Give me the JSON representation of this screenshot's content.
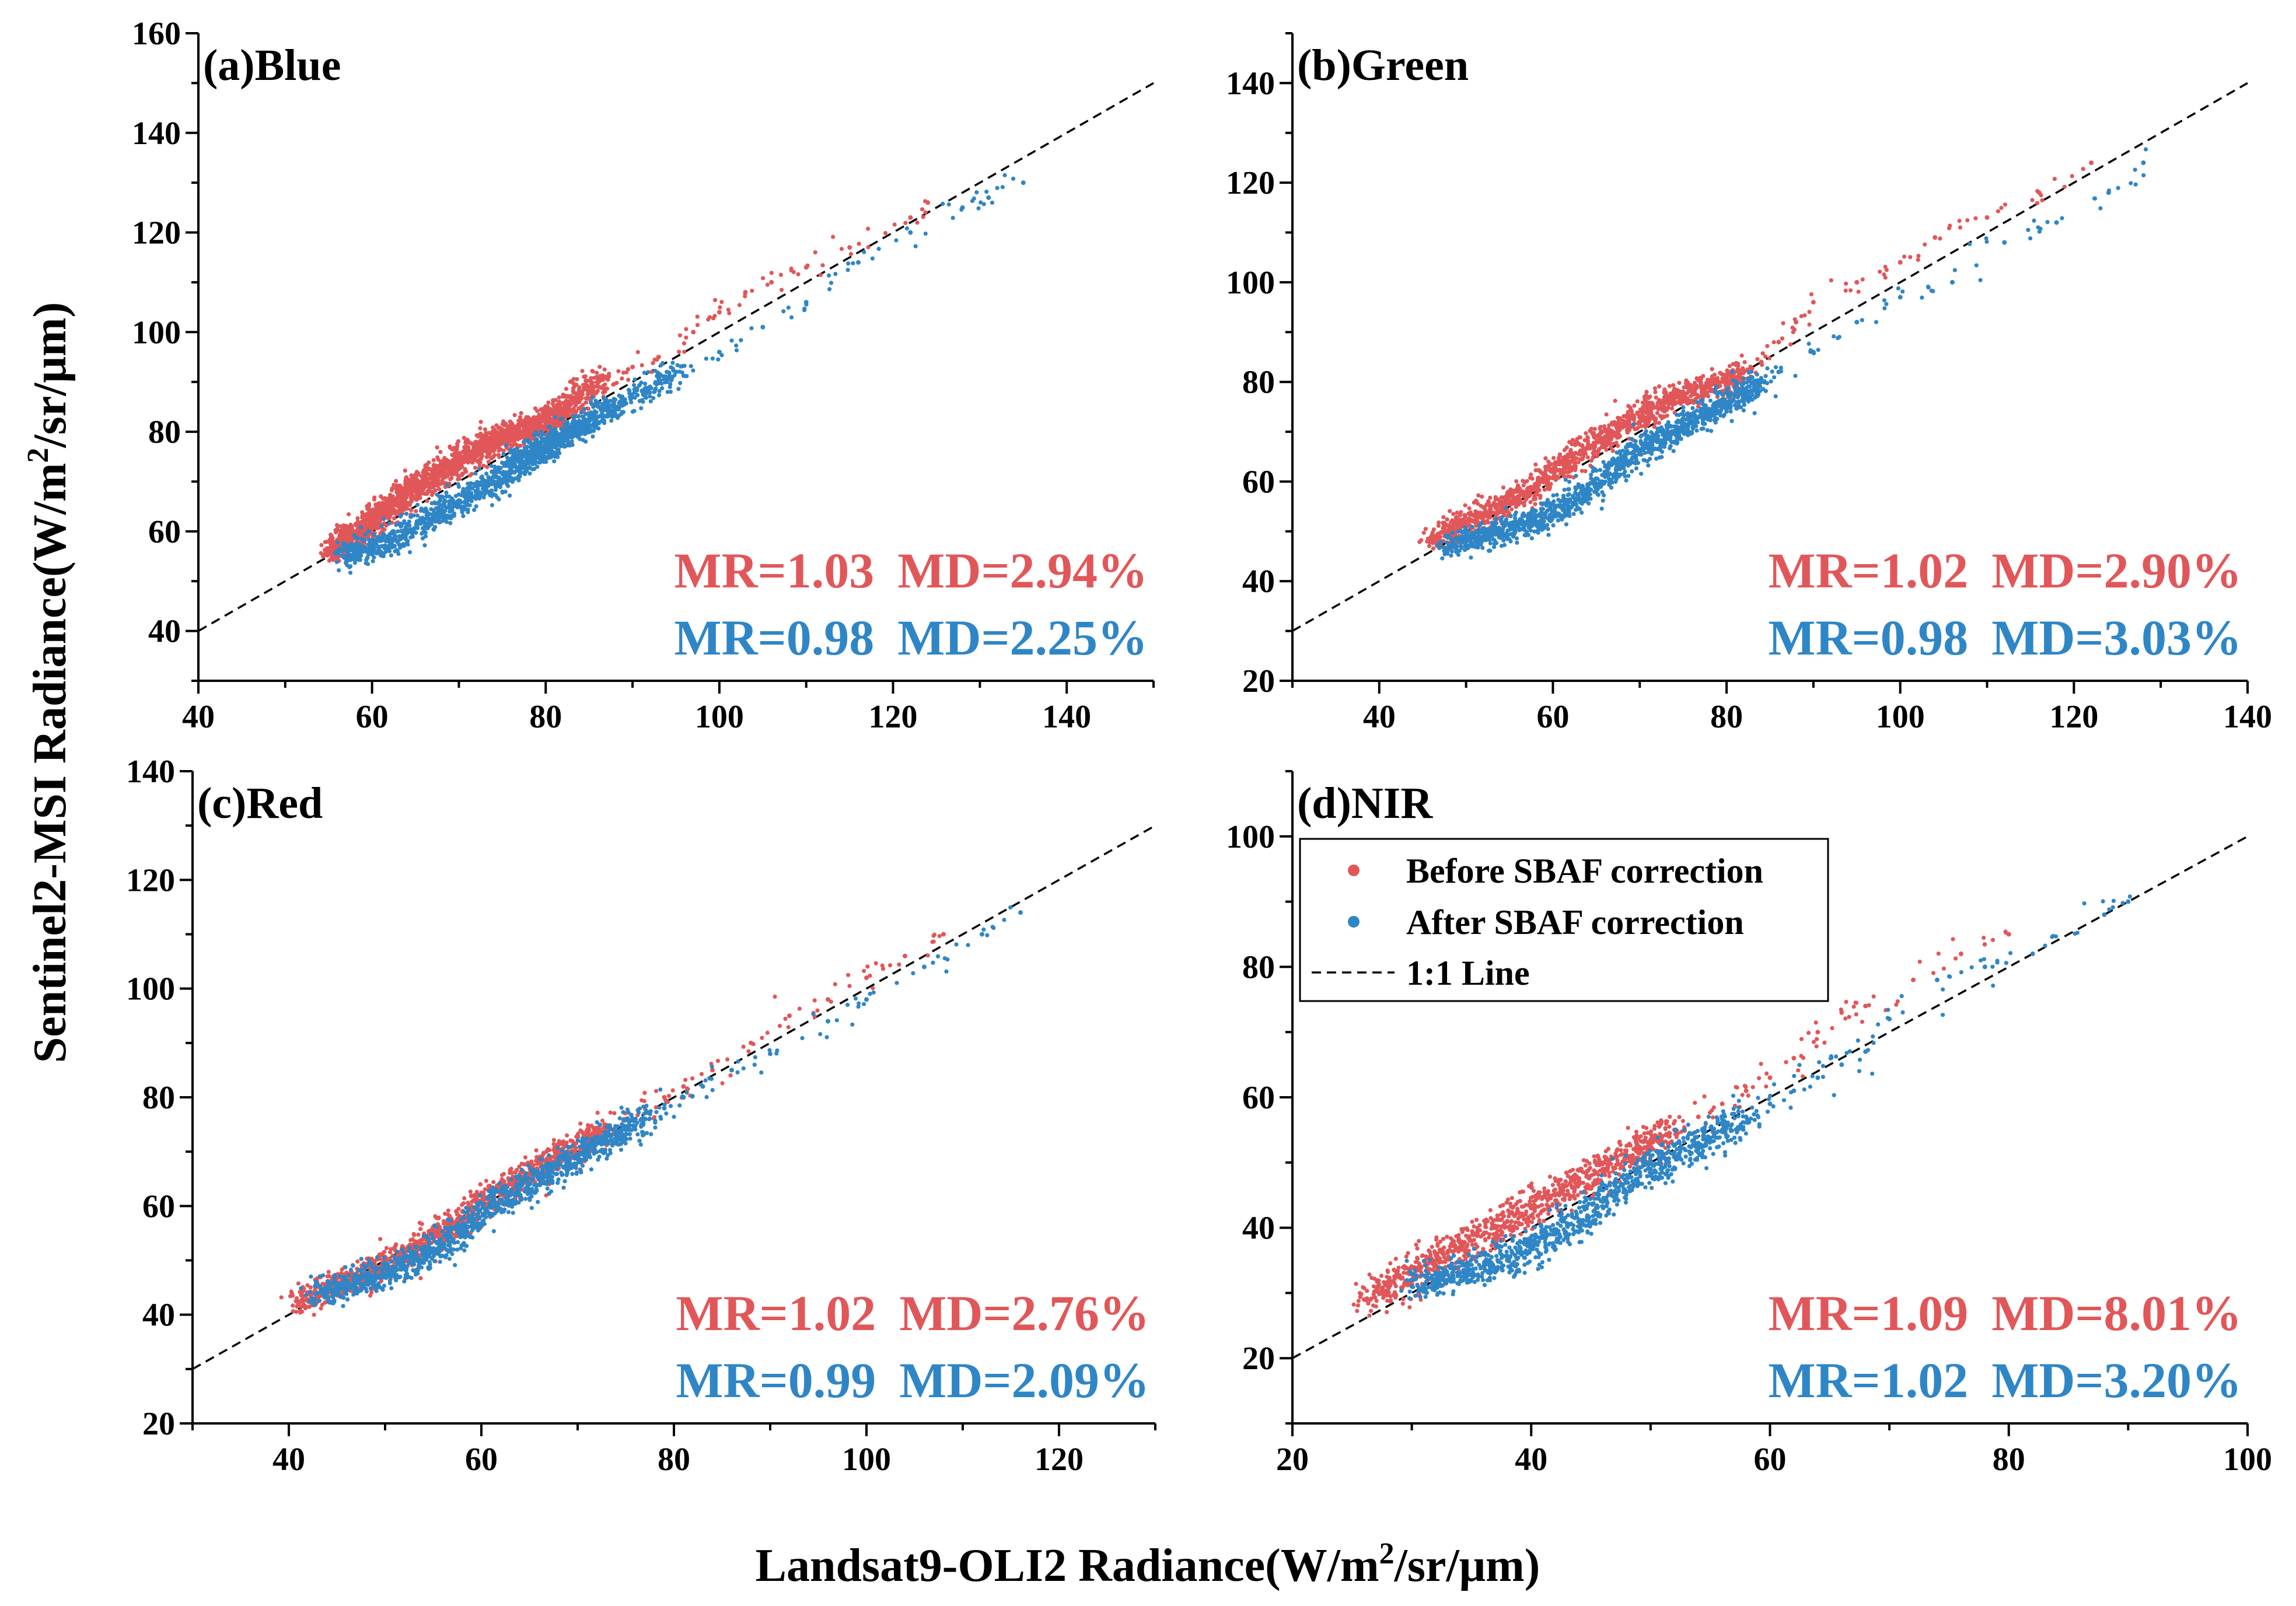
{
  "figure": {
    "xlabel_main": "Landsat9-OLI2 Radiance(W/m",
    "xlabel_sup": "2",
    "xlabel_tail": "/sr/μm)",
    "ylabel_main": "Sentinel2-MSI Radiance(W/m",
    "ylabel_sup": "2",
    "ylabel_tail": "/sr/μm)"
  },
  "colors": {
    "before": "#e15759",
    "after": "#2f86c6",
    "line": "#000000"
  },
  "legend": {
    "before_label": "Before SBAF correction",
    "after_label": "After SBAF correction",
    "line_label": "1:1 Line"
  },
  "chart_data": [
    {
      "type": "scatter",
      "panel": "a",
      "title": "(a)Blue",
      "xlim": [
        40,
        150
      ],
      "ylim": [
        30,
        160
      ],
      "xticks": [
        40,
        60,
        80,
        100,
        120,
        140
      ],
      "yticks": [
        40,
        60,
        80,
        100,
        120,
        140,
        160
      ],
      "stats": {
        "before": {
          "mr": "MR=1.03",
          "md": "MD=2.94%"
        },
        "after": {
          "mr": "MR=0.98",
          "md": "MD=2.25%"
        }
      },
      "series": [
        {
          "name": "Before SBAF correction",
          "x": [
            55,
            56,
            57,
            58,
            59,
            60,
            61,
            62,
            63,
            64,
            65,
            66,
            67,
            68,
            69,
            70,
            71,
            72,
            73,
            74,
            75,
            76,
            77,
            78,
            79,
            80,
            81,
            82,
            83,
            85,
            87,
            90,
            93,
            97,
            100,
            103,
            106,
            110,
            115,
            122,
            124
          ],
          "y": [
            56,
            57,
            58,
            59,
            60,
            62,
            64,
            65,
            66,
            68,
            69,
            70,
            71,
            72,
            73,
            74,
            75,
            76,
            77,
            78,
            79,
            80,
            80,
            81,
            81,
            82,
            83,
            84,
            86,
            89,
            91,
            93,
            95,
            100,
            104,
            108,
            110,
            113,
            117,
            123,
            126
          ]
        },
        {
          "name": "After SBAF correction",
          "x": [
            57,
            58,
            60,
            62,
            64,
            66,
            68,
            70,
            72,
            74,
            76,
            77,
            78,
            79,
            80,
            81,
            82,
            83,
            84,
            86,
            88,
            92,
            95,
            100,
            105,
            110,
            116,
            122,
            128,
            131,
            135
          ],
          "y": [
            55,
            56,
            57,
            58,
            60,
            62,
            64,
            66,
            68,
            70,
            72,
            74,
            75,
            76,
            77,
            78,
            79,
            80,
            81,
            83,
            85,
            89,
            92,
            96,
            101,
            106,
            114,
            120,
            125,
            127,
            130
          ]
        }
      ]
    },
    {
      "type": "scatter",
      "panel": "b",
      "title": "(b)Green",
      "xlim": [
        30,
        140
      ],
      "ylim": [
        20,
        150
      ],
      "xticks": [
        40,
        60,
        80,
        100,
        120,
        140
      ],
      "yticks": [
        20,
        40,
        60,
        80,
        100,
        120,
        140
      ],
      "stats": {
        "before": {
          "mr": "MR=1.02",
          "md": "MD=2.90%"
        },
        "after": {
          "mr": "MR=0.98",
          "md": "MD=3.03%"
        }
      },
      "series": [
        {
          "name": "Before SBAF correction",
          "x": [
            46,
            48,
            50,
            52,
            54,
            56,
            58,
            60,
            62,
            64,
            66,
            68,
            70,
            72,
            74,
            76,
            78,
            80,
            82,
            84,
            86,
            88,
            90,
            95,
            100,
            104,
            110,
            116,
            122
          ],
          "y": [
            48,
            50,
            52,
            53,
            55,
            57,
            59,
            62,
            64,
            67,
            69,
            71,
            73,
            75,
            77,
            78,
            79,
            80,
            82,
            84,
            88,
            92,
            96,
            100,
            104,
            109,
            113,
            118,
            124
          ]
        },
        {
          "name": "After SBAF correction",
          "x": [
            48,
            50,
            52,
            54,
            56,
            58,
            60,
            62,
            64,
            66,
            68,
            70,
            72,
            74,
            76,
            78,
            80,
            82,
            84,
            86,
            90,
            95,
            100,
            106,
            112,
            118,
            124,
            128
          ],
          "y": [
            47,
            48,
            49,
            50,
            51,
            52,
            54,
            56,
            58,
            61,
            64,
            66,
            68,
            70,
            72,
            74,
            76,
            78,
            80,
            82,
            86,
            92,
            97,
            100,
            108,
            112,
            118,
            124
          ]
        }
      ]
    },
    {
      "type": "scatter",
      "panel": "c",
      "title": "(c)Red",
      "xlim": [
        30,
        130
      ],
      "ylim": [
        20,
        140
      ],
      "xticks": [
        40,
        60,
        80,
        100,
        120
      ],
      "yticks": [
        20,
        40,
        60,
        80,
        100,
        120,
        140
      ],
      "stats": {
        "before": {
          "mr": "MR=1.02",
          "md": "MD=2.76%"
        },
        "after": {
          "mr": "MR=0.99",
          "md": "MD=2.09%"
        }
      },
      "series": [
        {
          "name": "Before SBAF correction",
          "x": [
            41,
            43,
            45,
            47,
            49,
            51,
            53,
            55,
            57,
            59,
            61,
            63,
            65,
            67,
            69,
            71,
            73,
            75,
            77,
            79,
            81,
            84,
            88,
            92,
            96,
            100,
            104,
            108
          ],
          "y": [
            42,
            44,
            45,
            47,
            48,
            50,
            52,
            54,
            56,
            59,
            62,
            64,
            66,
            68,
            70,
            72,
            74,
            76,
            78,
            80,
            82,
            85,
            90,
            95,
            98,
            102,
            106,
            110
          ]
        },
        {
          "name": "After SBAF correction",
          "x": [
            43,
            45,
            47,
            49,
            51,
            53,
            55,
            57,
            59,
            61,
            63,
            65,
            67,
            69,
            71,
            73,
            75,
            77,
            79,
            81,
            83,
            86,
            90,
            96,
            100,
            106,
            112,
            116
          ],
          "y": [
            44,
            45,
            46,
            47,
            48,
            50,
            52,
            54,
            57,
            60,
            62,
            64,
            66,
            68,
            70,
            72,
            74,
            76,
            78,
            80,
            82,
            85,
            88,
            94,
            98,
            104,
            110,
            114
          ]
        }
      ]
    },
    {
      "type": "scatter",
      "panel": "d",
      "title": "(d)NIR",
      "xlim": [
        20,
        100
      ],
      "ylim": [
        10,
        110
      ],
      "xticks": [
        20,
        40,
        60,
        80,
        100
      ],
      "yticks": [
        20,
        40,
        60,
        80,
        100
      ],
      "stats": {
        "before": {
          "mr": "MR=1.09",
          "md": "MD=8.01%"
        },
        "after": {
          "mr": "MR=1.02",
          "md": "MD=3.20%"
        }
      },
      "series": [
        {
          "name": "Before SBAF correction",
          "x": [
            26,
            28,
            30,
            32,
            34,
            36,
            38,
            40,
            42,
            44,
            46,
            48,
            50,
            52,
            54,
            56,
            58,
            60,
            62,
            64,
            66,
            68,
            72,
            76,
            80
          ],
          "y": [
            29,
            31,
            33,
            35,
            37,
            39,
            41,
            43,
            45,
            47,
            49,
            51,
            53,
            55,
            57,
            59,
            61,
            63,
            66,
            70,
            73,
            74,
            78,
            82,
            85
          ]
        },
        {
          "name": "After SBAF correction",
          "x": [
            30,
            32,
            34,
            36,
            38,
            40,
            42,
            44,
            46,
            48,
            50,
            52,
            54,
            56,
            58,
            60,
            62,
            64,
            66,
            68,
            70,
            74,
            78,
            82,
            88,
            90
          ],
          "y": [
            31,
            32,
            33,
            34,
            35,
            37,
            39,
            41,
            44,
            47,
            49,
            51,
            53,
            55,
            57,
            59,
            61,
            63,
            65,
            67,
            72,
            78,
            80,
            82,
            88,
            90
          ]
        }
      ]
    }
  ]
}
